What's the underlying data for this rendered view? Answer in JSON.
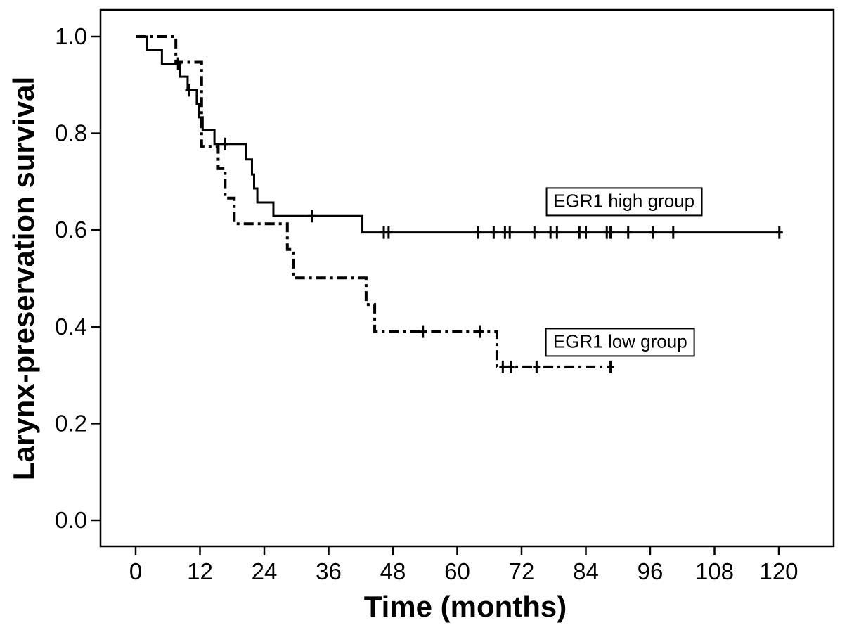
{
  "chart_data": {
    "type": "line",
    "subtype": "kaplan-meier-step",
    "title": "",
    "xlabel": "Time (months)",
    "ylabel": "Larynx-preservation survival",
    "xlim": [
      -7,
      130
    ],
    "ylim": [
      -0.054,
      1.055
    ],
    "grid": false,
    "legend_position": "inline-annotation-boxes",
    "xticks": {
      "values": [
        0,
        12,
        24,
        36,
        48,
        60,
        72,
        84,
        96,
        108,
        120
      ],
      "labels": [
        "0",
        "12",
        "24",
        "36",
        "48",
        "60",
        "72",
        "84",
        "96",
        "108",
        "120"
      ]
    },
    "yticks": {
      "values": [
        0.0,
        0.2,
        0.4,
        0.6,
        0.8,
        1.0
      ],
      "labels": [
        "0.0",
        "0.2",
        "0.4",
        "0.6",
        "0.8",
        "1.0"
      ]
    },
    "series": [
      {
        "name": "EGR1 high group",
        "line_style": "solid",
        "color": "#000000",
        "steps": [
          [
            0,
            1.0
          ],
          [
            2.1,
            0.972
          ],
          [
            4.9,
            0.944
          ],
          [
            8.3,
            0.917
          ],
          [
            9.7,
            0.889
          ],
          [
            11.4,
            0.861
          ],
          [
            11.8,
            0.833
          ],
          [
            12.5,
            0.806
          ],
          [
            14.7,
            0.778
          ],
          [
            20.6,
            0.746
          ],
          [
            21.7,
            0.715
          ],
          [
            22.1,
            0.686
          ],
          [
            22.7,
            0.657
          ],
          [
            25.7,
            0.629
          ],
          [
            42.3,
            0.595
          ]
        ],
        "end_t": 120.5,
        "censors": [
          [
            7.9,
            0.944
          ],
          [
            9.9,
            0.889
          ],
          [
            16.7,
            0.778
          ],
          [
            32.9,
            0.629
          ],
          [
            46.3,
            0.595
          ],
          [
            47.2,
            0.595
          ],
          [
            63.9,
            0.595
          ],
          [
            66.8,
            0.595
          ],
          [
            68.9,
            0.595
          ],
          [
            69.8,
            0.595
          ],
          [
            74.4,
            0.595
          ],
          [
            77.4,
            0.595
          ],
          [
            78.6,
            0.595
          ],
          [
            82.8,
            0.595
          ],
          [
            84,
            0.595
          ],
          [
            87.9,
            0.595
          ],
          [
            88.6,
            0.595
          ],
          [
            91.9,
            0.595
          ],
          [
            96.5,
            0.595
          ],
          [
            100.3,
            0.595
          ],
          [
            120.1,
            0.595
          ]
        ]
      },
      {
        "name": "EGR1 low group",
        "line_style": "dash-dot",
        "color": "#000000",
        "steps": [
          [
            0,
            1.0
          ],
          [
            7.5,
            0.947
          ],
          [
            12.3,
            0.773
          ],
          [
            15.4,
            0.727
          ],
          [
            16.7,
            0.666
          ],
          [
            18.4,
            0.613
          ],
          [
            28.3,
            0.56
          ],
          [
            29.4,
            0.501
          ],
          [
            43,
            0.446
          ],
          [
            44.6,
            0.39
          ],
          [
            67.4,
            0.317
          ]
        ],
        "end_t": 88.8,
        "censors": [
          [
            53.6,
            0.39
          ],
          [
            64.3,
            0.39
          ],
          [
            68.5,
            0.317
          ],
          [
            70,
            0.317
          ],
          [
            74.8,
            0.317
          ],
          [
            88.6,
            0.317
          ]
        ]
      }
    ],
    "annotations": [
      {
        "name": "egr1-high-group-label",
        "text": "EGR1 high group",
        "t": 91.1,
        "s": 0.659
      },
      {
        "name": "egr1-low-group-label",
        "text": "EGR1 low group",
        "t": 90.4,
        "s": 0.368
      }
    ]
  }
}
